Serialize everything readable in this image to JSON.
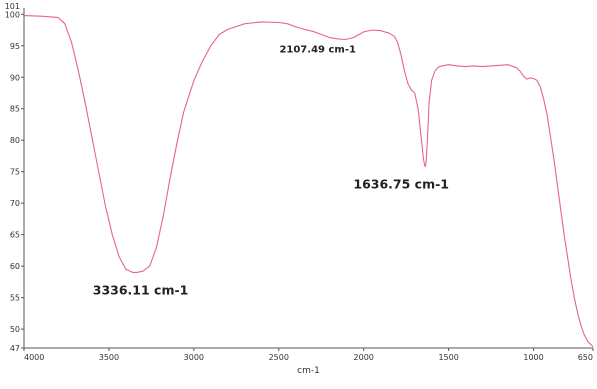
{
  "chart_data": {
    "type": "line",
    "title": "",
    "xlabel": "cm-1",
    "ylabel": "",
    "xlim": [
      4000,
      650
    ],
    "ylim": [
      47,
      101
    ],
    "x_reversed": true,
    "grid": false,
    "legend": "none",
    "line_color": "#e8609a",
    "x_ticks": [
      4000,
      3500,
      3000,
      2500,
      2000,
      1500,
      1000,
      650
    ],
    "x_tick_labels": [
      "4000",
      "3500",
      "3000",
      "2500",
      "2000",
      "1500",
      "1000",
      "650"
    ],
    "y_ticks": [
      100,
      95,
      90,
      85,
      80,
      75,
      70,
      65,
      60,
      55,
      50,
      47
    ],
    "y_tick_labels": [
      "100",
      "95",
      "90",
      "85",
      "80",
      "75",
      "70",
      "65",
      "60",
      "55",
      "50",
      "47"
    ],
    "y_top_label": "101",
    "series": [
      {
        "x": [
          4000,
          3900,
          3800,
          3760,
          3720,
          3680,
          3640,
          3600,
          3560,
          3520,
          3480,
          3440,
          3400,
          3360,
          3336,
          3300,
          3260,
          3220,
          3180,
          3140,
          3100,
          3060,
          3000,
          2950,
          2900,
          2850,
          2800,
          2700,
          2600,
          2500,
          2450,
          2400,
          2350,
          2300,
          2250,
          2200,
          2150,
          2107,
          2060,
          2000,
          1950,
          1900,
          1850,
          1820,
          1800,
          1780,
          1760,
          1740,
          1720,
          1700,
          1680,
          1660,
          1650,
          1645,
          1640,
          1637,
          1632,
          1625,
          1615,
          1600,
          1580,
          1560,
          1540,
          1500,
          1450,
          1400,
          1350,
          1300,
          1250,
          1200,
          1150,
          1100,
          1080,
          1060,
          1040,
          1020,
          1000,
          980,
          960,
          940,
          920,
          900,
          880,
          860,
          840,
          820,
          800,
          780,
          760,
          740,
          720,
          700,
          680,
          660,
          650
        ],
        "y": [
          99.8,
          99.7,
          99.5,
          98.5,
          95.5,
          91.0,
          86.0,
          80.5,
          75.0,
          69.5,
          65.0,
          61.5,
          59.5,
          59.0,
          59.0,
          59.2,
          60.0,
          63.0,
          68.0,
          74.0,
          79.5,
          84.5,
          89.5,
          92.5,
          95.0,
          96.8,
          97.6,
          98.5,
          98.8,
          98.7,
          98.5,
          98.0,
          97.6,
          97.3,
          96.8,
          96.3,
          96.1,
          96.0,
          96.3,
          97.2,
          97.5,
          97.4,
          97.0,
          96.5,
          95.5,
          93.5,
          91.0,
          89.0,
          88.0,
          87.5,
          85.0,
          80.0,
          77.5,
          76.5,
          76.0,
          75.8,
          76.8,
          80.0,
          86.0,
          89.5,
          91.0,
          91.6,
          91.8,
          92.0,
          91.8,
          91.7,
          91.8,
          91.7,
          91.8,
          91.9,
          92.0,
          91.5,
          91.0,
          90.2,
          89.7,
          89.9,
          89.8,
          89.5,
          88.5,
          86.5,
          84.0,
          80.5,
          77.0,
          73.0,
          69.0,
          65.0,
          61.5,
          58.0,
          55.0,
          52.5,
          50.5,
          49.0,
          48.0,
          47.5,
          47.2
        ]
      }
    ],
    "annotations": [
      {
        "text": "3336.11 cm-1",
        "x": 3336.11,
        "y": 59.0,
        "size": "large"
      },
      {
        "text": "2107.49 cm-1",
        "x": 2107.49,
        "y": 96.0,
        "size": "small"
      },
      {
        "text": "1636.75 cm-1",
        "x": 1636.75,
        "y": 75.8,
        "size": "large"
      }
    ]
  }
}
